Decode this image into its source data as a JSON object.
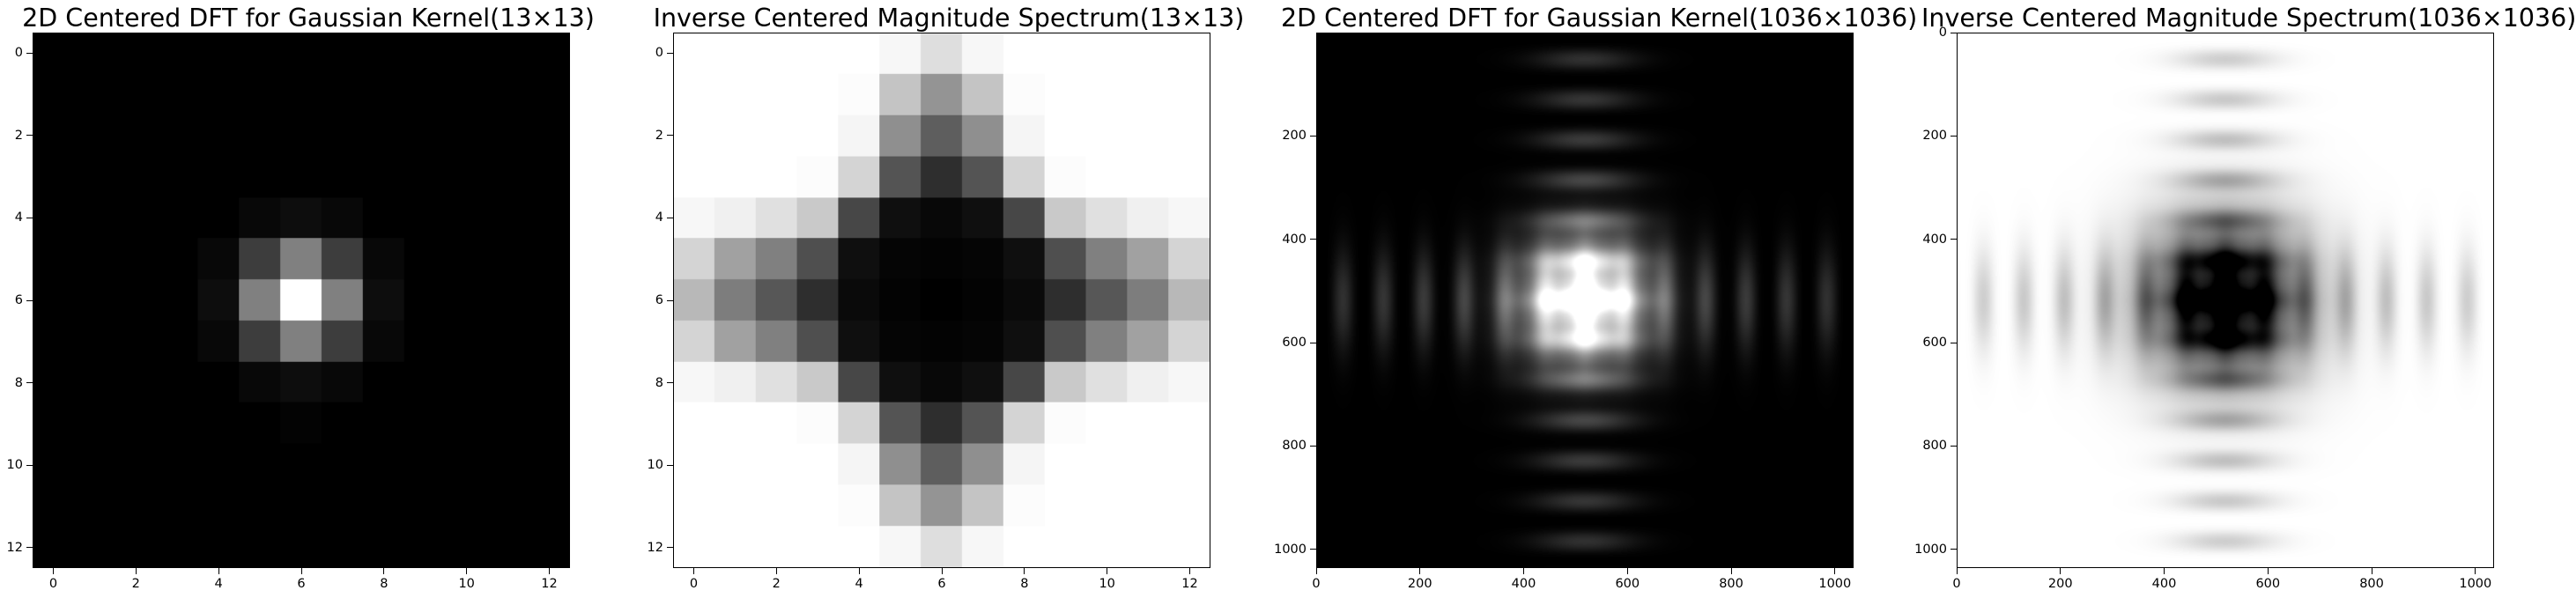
{
  "chart_data": [
    {
      "type": "heatmap",
      "title": "2D Centered DFT for Gaussian Kernel(13×13)",
      "colormap": "gray",
      "size": [
        13,
        13
      ],
      "xlim": [
        -0.5,
        12.5
      ],
      "ylim": [
        12.5,
        -0.5
      ],
      "xticks": [
        0,
        2,
        4,
        6,
        8,
        10,
        12
      ],
      "yticks": [
        0,
        2,
        4,
        6,
        8,
        10,
        12
      ],
      "xtick_labels": [
        "0",
        "2",
        "4",
        "6",
        "8",
        "10",
        "12"
      ],
      "ytick_labels": [
        "0",
        "2",
        "4",
        "6",
        "8",
        "10",
        "12"
      ],
      "values": [
        [
          0.0,
          0.0,
          0.0,
          0.0,
          0.0,
          0.0,
          0.0,
          0.0,
          0.0,
          0.0,
          0.0,
          0.0,
          0.0
        ],
        [
          0.0,
          0.0,
          0.0,
          0.0,
          0.0,
          0.0,
          0.0,
          0.0,
          0.0,
          0.0,
          0.0,
          0.0,
          0.0
        ],
        [
          0.0,
          0.0,
          0.0,
          0.0,
          0.0,
          0.0,
          0.0,
          0.0,
          0.0,
          0.0,
          0.0,
          0.0,
          0.0
        ],
        [
          0.0,
          0.0,
          0.0,
          0.0,
          0.0,
          0.0,
          0.0,
          0.0,
          0.0,
          0.0,
          0.0,
          0.0,
          0.0
        ],
        [
          0.0,
          0.0,
          0.0,
          0.0,
          0.0,
          0.03,
          0.05,
          0.03,
          0.0,
          0.0,
          0.0,
          0.0,
          0.0
        ],
        [
          0.0,
          0.0,
          0.0,
          0.0,
          0.03,
          0.24,
          0.5,
          0.24,
          0.03,
          0.0,
          0.0,
          0.0,
          0.0
        ],
        [
          0.0,
          0.0,
          0.0,
          0.0,
          0.05,
          0.5,
          1.0,
          0.5,
          0.05,
          0.0,
          0.0,
          0.0,
          0.0
        ],
        [
          0.0,
          0.0,
          0.0,
          0.0,
          0.03,
          0.24,
          0.5,
          0.24,
          0.03,
          0.0,
          0.0,
          0.0,
          0.0
        ],
        [
          0.0,
          0.0,
          0.0,
          0.0,
          0.0,
          0.03,
          0.05,
          0.03,
          0.0,
          0.0,
          0.0,
          0.0,
          0.0
        ],
        [
          0.0,
          0.0,
          0.0,
          0.0,
          0.0,
          0.0,
          0.01,
          0.0,
          0.0,
          0.0,
          0.0,
          0.0,
          0.0
        ],
        [
          0.0,
          0.0,
          0.0,
          0.0,
          0.0,
          0.0,
          0.0,
          0.0,
          0.0,
          0.0,
          0.0,
          0.0,
          0.0
        ],
        [
          0.0,
          0.0,
          0.0,
          0.0,
          0.0,
          0.0,
          0.0,
          0.0,
          0.0,
          0.0,
          0.0,
          0.0,
          0.0
        ],
        [
          0.0,
          0.0,
          0.0,
          0.0,
          0.0,
          0.0,
          0.0,
          0.0,
          0.0,
          0.0,
          0.0,
          0.0,
          0.0
        ]
      ]
    },
    {
      "type": "heatmap",
      "title": "Inverse Centered Magnitude Spectrum(13×13)",
      "colormap": "gray",
      "size": [
        13,
        13
      ],
      "xlim": [
        -0.5,
        12.5
      ],
      "ylim": [
        12.5,
        -0.5
      ],
      "xticks": [
        0,
        2,
        4,
        6,
        8,
        10,
        12
      ],
      "yticks": [
        0,
        2,
        4,
        6,
        8,
        10,
        12
      ],
      "xtick_labels": [
        "0",
        "2",
        "4",
        "6",
        "8",
        "10",
        "12"
      ],
      "ytick_labels": [
        "0",
        "2",
        "4",
        "6",
        "8",
        "10",
        "12"
      ],
      "values": [
        [
          1.0,
          1.0,
          1.0,
          1.0,
          1.0,
          0.97,
          0.87,
          0.97,
          1.0,
          1.0,
          1.0,
          1.0,
          1.0
        ],
        [
          1.0,
          1.0,
          1.0,
          1.0,
          0.99,
          0.77,
          0.58,
          0.77,
          0.99,
          1.0,
          1.0,
          1.0,
          1.0
        ],
        [
          1.0,
          1.0,
          1.0,
          1.0,
          0.96,
          0.56,
          0.37,
          0.56,
          0.96,
          1.0,
          1.0,
          1.0,
          1.0
        ],
        [
          1.0,
          1.0,
          1.0,
          0.99,
          0.83,
          0.33,
          0.18,
          0.33,
          0.83,
          0.99,
          1.0,
          1.0,
          1.0
        ],
        [
          0.97,
          0.94,
          0.88,
          0.79,
          0.28,
          0.06,
          0.03,
          0.06,
          0.28,
          0.79,
          0.88,
          0.94,
          0.97
        ],
        [
          0.83,
          0.63,
          0.5,
          0.31,
          0.06,
          0.02,
          0.01,
          0.02,
          0.06,
          0.31,
          0.5,
          0.63,
          0.83
        ],
        [
          0.72,
          0.49,
          0.34,
          0.18,
          0.04,
          0.01,
          0.0,
          0.01,
          0.04,
          0.18,
          0.34,
          0.49,
          0.72
        ],
        [
          0.83,
          0.63,
          0.5,
          0.31,
          0.06,
          0.02,
          0.01,
          0.02,
          0.06,
          0.31,
          0.5,
          0.63,
          0.83
        ],
        [
          0.97,
          0.94,
          0.88,
          0.79,
          0.28,
          0.06,
          0.03,
          0.06,
          0.28,
          0.79,
          0.88,
          0.94,
          0.97
        ],
        [
          1.0,
          1.0,
          1.0,
          0.99,
          0.83,
          0.33,
          0.18,
          0.33,
          0.83,
          0.99,
          1.0,
          1.0,
          1.0
        ],
        [
          1.0,
          1.0,
          1.0,
          1.0,
          0.96,
          0.56,
          0.37,
          0.56,
          0.96,
          1.0,
          1.0,
          1.0,
          1.0
        ],
        [
          1.0,
          1.0,
          1.0,
          1.0,
          0.99,
          0.77,
          0.58,
          0.77,
          0.99,
          1.0,
          1.0,
          1.0,
          1.0
        ],
        [
          1.0,
          1.0,
          1.0,
          1.0,
          1.0,
          0.97,
          0.87,
          0.97,
          1.0,
          1.0,
          1.0,
          1.0,
          1.0
        ]
      ]
    },
    {
      "type": "heatmap",
      "title": "2D Centered DFT for Gaussian Kernel(1036×1036)",
      "colormap": "gray",
      "size": [
        1036,
        1036
      ],
      "xlim": [
        0,
        1036
      ],
      "ylim": [
        1036,
        0
      ],
      "xticks": [
        0,
        200,
        400,
        600,
        800,
        1000
      ],
      "yticks": [
        200,
        400,
        600,
        800,
        1000
      ],
      "xtick_labels": [
        "0",
        "200",
        "400",
        "600",
        "800",
        "1000"
      ],
      "ytick_labels": [
        "200",
        "400",
        "600",
        "800",
        "1000"
      ],
      "center": [
        518,
        518
      ],
      "bright_disk_radius": 118,
      "ring_period": 78,
      "ring_level": 0.32
    },
    {
      "type": "heatmap",
      "title": "Inverse Centered Magnitude Spectrum(1036×1036)",
      "colormap": "gray",
      "size": [
        1036,
        1036
      ],
      "xlim": [
        0,
        1036
      ],
      "ylim": [
        1036,
        0
      ],
      "xticks": [
        0,
        200,
        400,
        600,
        800,
        1000
      ],
      "yticks": [
        0,
        200,
        400,
        600,
        800,
        1000
      ],
      "xtick_labels": [
        "0",
        "200",
        "400",
        "600",
        "800",
        "1000"
      ],
      "ytick_labels": [
        "0",
        "200",
        "400",
        "600",
        "800",
        "1000"
      ],
      "center": [
        518,
        518
      ],
      "dark_disk_radius": 150,
      "ring_period": 78,
      "ring_level": 0.32
    }
  ]
}
